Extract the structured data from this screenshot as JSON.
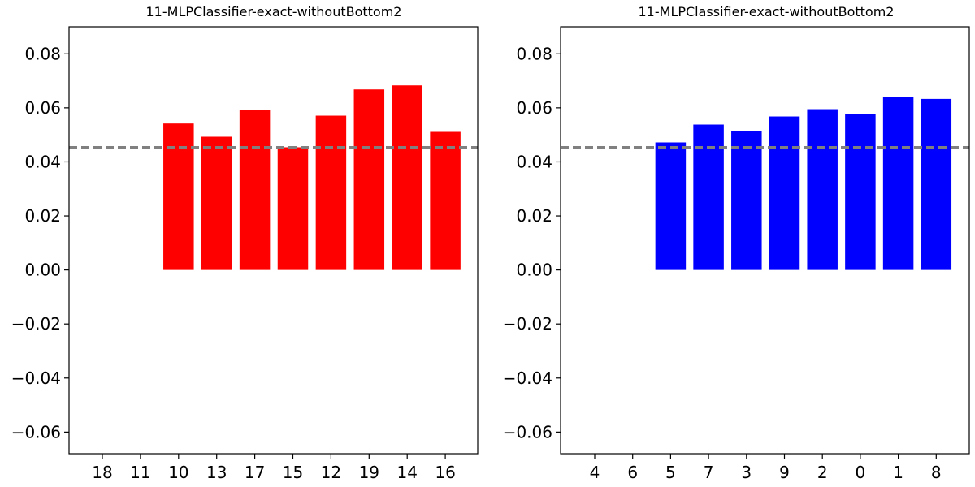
{
  "chart_data": [
    {
      "type": "bar",
      "title": "11-MLPClassifier-exact-withoutBottom2",
      "xlabel": "",
      "ylabel": "",
      "categories": [
        "18",
        "11",
        "10",
        "13",
        "17",
        "15",
        "12",
        "19",
        "14",
        "16"
      ],
      "values": [
        0,
        0,
        0.0542,
        0.0493,
        0.0593,
        0.0454,
        0.0571,
        0.0668,
        0.0683,
        0.0511
      ],
      "bar_color": "#ff0000",
      "reference_line": {
        "y": 0.0454,
        "color": "#808080",
        "style": "dashed"
      },
      "ylim": [
        -0.068,
        0.09
      ],
      "yticks": [
        -0.06,
        -0.04,
        -0.02,
        0.0,
        0.02,
        0.04,
        0.06,
        0.08
      ],
      "ytick_labels": [
        "−0.06",
        "−0.04",
        "−0.02",
        "0.00",
        "0.02",
        "0.04",
        "0.06",
        "0.08"
      ],
      "grid": false,
      "legend": "none"
    },
    {
      "type": "bar",
      "title": "11-MLPClassifier-exact-withoutBottom2",
      "xlabel": "",
      "ylabel": "",
      "categories": [
        "4",
        "6",
        "5",
        "7",
        "3",
        "9",
        "2",
        "0",
        "1",
        "8"
      ],
      "values": [
        0,
        0,
        0.0472,
        0.0538,
        0.0513,
        0.0568,
        0.0595,
        0.0577,
        0.0641,
        0.0633
      ],
      "bar_color": "#0000ff",
      "reference_line": {
        "y": 0.0454,
        "color": "#808080",
        "style": "dashed"
      },
      "ylim": [
        -0.068,
        0.09
      ],
      "yticks": [
        -0.06,
        -0.04,
        -0.02,
        0.0,
        0.02,
        0.04,
        0.06,
        0.08
      ],
      "ytick_labels": [
        "−0.06",
        "−0.04",
        "−0.02",
        "0.00",
        "0.02",
        "0.04",
        "0.06",
        "0.08"
      ],
      "grid": false,
      "legend": "none"
    }
  ]
}
